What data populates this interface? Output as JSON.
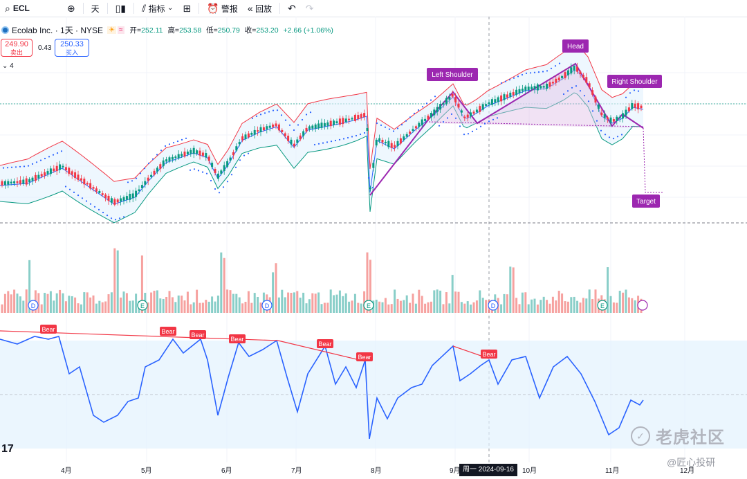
{
  "toolbar": {
    "symbol": "ECL",
    "interval": "天",
    "indicators": "指标",
    "alert": "警报",
    "replay": "回放"
  },
  "legend": {
    "name": "Ecolab Inc. · 1天 · NYSE",
    "open_label": "开=",
    "open": "252.11",
    "high_label": "高=",
    "high": "253.58",
    "low_label": "低=",
    "low": "250.79",
    "close_label": "收=",
    "close": "253.20",
    "change": "+2.66 (+1.06%)"
  },
  "trade": {
    "sell_price": "249.90",
    "sell_label": "卖出",
    "spread": "0.43",
    "buy_price": "250.33",
    "buy_label": "买入"
  },
  "collapse_count": "4",
  "annotations": {
    "head": "Head",
    "left_shoulder": "Left Shoulder",
    "right_shoulder": "Right Shoulder",
    "target": "Target"
  },
  "events": {
    "dividend": "D",
    "earnings": "E"
  },
  "rsi_labels": [
    "Bear",
    "Bear",
    "Bear",
    "Bear",
    "Bear",
    "Bear",
    "Bear"
  ],
  "x_axis": [
    "4月",
    "5月",
    "6月",
    "7月",
    "8月",
    "9月",
    "10月",
    "11月",
    "12月"
  ],
  "crosshair_date": "周一  2024-09-16",
  "watermark": {
    "main": "老虎社区",
    "sub": "@匠心投研"
  },
  "colors": {
    "up": "#089981",
    "down": "#f23645",
    "pattern": "#9c27b0",
    "band_fill": "#e3f2fd",
    "rsi_line": "#2962ff"
  },
  "chart_data": {
    "type": "candlestick",
    "symbol": "ECL",
    "x_ticks": [
      "4月",
      "5月",
      "6月",
      "7月",
      "8月",
      "9月",
      "10月",
      "11月",
      "12月"
    ],
    "last": {
      "open": 252.11,
      "high": 253.58,
      "low": 250.79,
      "close": 253.2,
      "change": 2.66,
      "change_pct": 1.06
    },
    "pattern": "Head and Shoulders",
    "pattern_labels": [
      "Left Shoulder",
      "Head",
      "Right Shoulder",
      "Target"
    ]
  }
}
